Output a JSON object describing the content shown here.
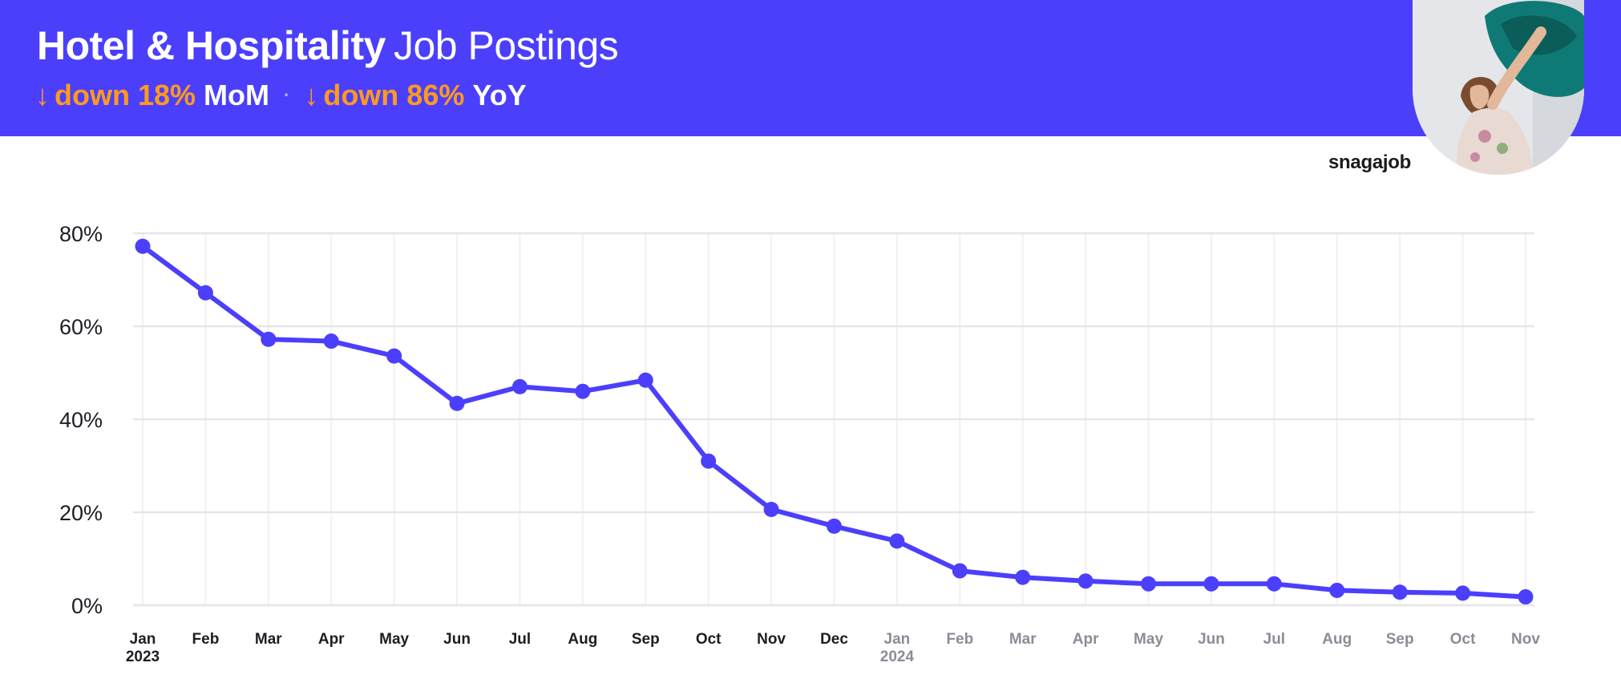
{
  "header": {
    "title_bold": "Hotel & Hospitality",
    "title_light": "Job Postings",
    "mom": {
      "arrow": "↓",
      "text": "down 18%",
      "label": "MoM"
    },
    "separator": "·",
    "yoy": {
      "arrow": "↓",
      "text": "down 86%",
      "label": "YoY"
    }
  },
  "brand": "snagajob",
  "colors": {
    "header_bg": "#4b3ffc",
    "accent": "#ff9a1f",
    "line": "#4b3ffc",
    "grid": "#e6e6ea"
  },
  "chart_data": {
    "type": "line",
    "title": "",
    "xlabel": "",
    "ylabel": "",
    "ylim": [
      0,
      80
    ],
    "yticks": [
      0,
      20,
      40,
      60,
      80
    ],
    "ytick_labels": [
      "0%",
      "20%",
      "40%",
      "60%",
      "80%"
    ],
    "grid": true,
    "categories": [
      "Jan",
      "Feb",
      "Mar",
      "Apr",
      "May",
      "Jun",
      "Jul",
      "Aug",
      "Sep",
      "Oct",
      "Nov",
      "Dec",
      "Jan",
      "Feb",
      "Mar",
      "Apr",
      "May",
      "Jun",
      "Jul",
      "Aug",
      "Sep",
      "Oct",
      "Nov"
    ],
    "year_labels": [
      {
        "index": 0,
        "label": "2023"
      },
      {
        "index": 12,
        "label": "2024"
      }
    ],
    "series": [
      {
        "values": [
          77.2,
          67.2,
          57.2,
          56.8,
          53.6,
          43.4,
          47.0,
          46.0,
          48.4,
          31.0,
          20.6,
          17.0,
          13.8,
          7.4,
          6.0,
          5.2,
          4.6,
          4.6,
          4.6,
          3.2,
          2.8,
          2.6,
          1.8
        ]
      }
    ]
  }
}
